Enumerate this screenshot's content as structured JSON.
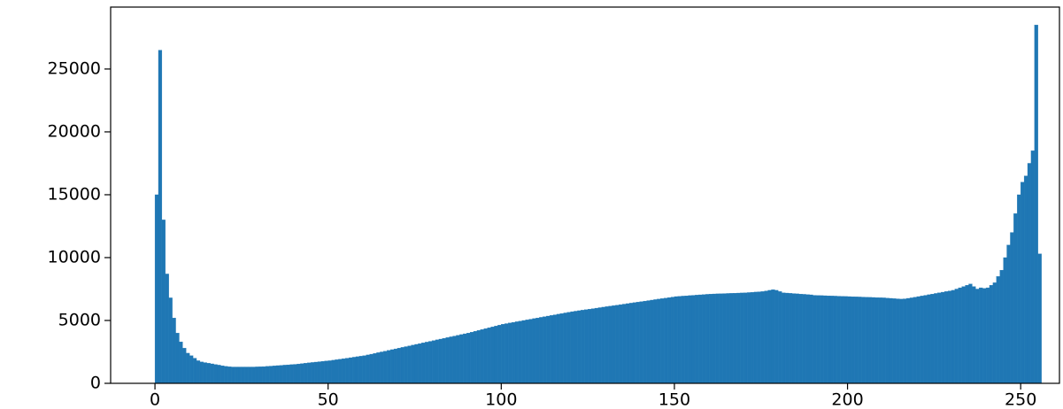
{
  "chart_data": {
    "type": "histogram",
    "color": "#1f77b4",
    "bins": [
      0,
      1,
      2,
      3,
      4,
      5,
      6,
      7,
      8,
      9,
      10,
      11,
      12,
      13,
      14,
      15,
      16,
      17,
      18,
      19,
      20,
      21,
      22,
      23,
      24,
      25,
      26,
      27,
      28,
      29,
      30,
      31,
      32,
      33,
      34,
      35,
      36,
      37,
      38,
      39,
      40,
      41,
      42,
      43,
      44,
      45,
      46,
      47,
      48,
      49,
      50,
      51,
      52,
      53,
      54,
      55,
      56,
      57,
      58,
      59,
      60,
      61,
      62,
      63,
      64,
      65,
      66,
      67,
      68,
      69,
      70,
      71,
      72,
      73,
      74,
      75,
      76,
      77,
      78,
      79,
      80,
      81,
      82,
      83,
      84,
      85,
      86,
      87,
      88,
      89,
      90,
      91,
      92,
      93,
      94,
      95,
      96,
      97,
      98,
      99,
      100,
      101,
      102,
      103,
      104,
      105,
      106,
      107,
      108,
      109,
      110,
      111,
      112,
      113,
      114,
      115,
      116,
      117,
      118,
      119,
      120,
      121,
      122,
      123,
      124,
      125,
      126,
      127,
      128,
      129,
      130,
      131,
      132,
      133,
      134,
      135,
      136,
      137,
      138,
      139,
      140,
      141,
      142,
      143,
      144,
      145,
      146,
      147,
      148,
      149,
      150,
      151,
      152,
      153,
      154,
      155,
      156,
      157,
      158,
      159,
      160,
      161,
      162,
      163,
      164,
      165,
      166,
      167,
      168,
      169,
      170,
      171,
      172,
      173,
      174,
      175,
      176,
      177,
      178,
      179,
      180,
      181,
      182,
      183,
      184,
      185,
      186,
      187,
      188,
      189,
      190,
      191,
      192,
      193,
      194,
      195,
      196,
      197,
      198,
      199,
      200,
      201,
      202,
      203,
      204,
      205,
      206,
      207,
      208,
      209,
      210,
      211,
      212,
      213,
      214,
      215,
      216,
      217,
      218,
      219,
      220,
      221,
      222,
      223,
      224,
      225,
      226,
      227,
      228,
      229,
      230,
      231,
      232,
      233,
      234,
      235,
      236,
      237,
      238,
      239,
      240,
      241,
      242,
      243,
      244,
      245,
      246,
      247,
      248,
      249,
      250,
      251,
      252,
      253,
      254,
      255,
      256
    ],
    "values": [
      15000,
      26500,
      13000,
      8700,
      6800,
      5200,
      4000,
      3300,
      2800,
      2400,
      2200,
      2000,
      1800,
      1700,
      1650,
      1600,
      1550,
      1500,
      1450,
      1400,
      1350,
      1320,
      1300,
      1300,
      1300,
      1300,
      1300,
      1300,
      1300,
      1310,
      1320,
      1330,
      1350,
      1370,
      1390,
      1410,
      1430,
      1450,
      1470,
      1490,
      1510,
      1540,
      1570,
      1600,
      1630,
      1660,
      1690,
      1720,
      1750,
      1780,
      1800,
      1840,
      1880,
      1920,
      1960,
      2000,
      2040,
      2080,
      2120,
      2160,
      2200,
      2260,
      2320,
      2380,
      2440,
      2500,
      2560,
      2620,
      2680,
      2740,
      2800,
      2860,
      2920,
      2980,
      3040,
      3100,
      3160,
      3220,
      3280,
      3340,
      3400,
      3460,
      3520,
      3580,
      3640,
      3700,
      3760,
      3820,
      3880,
      3940,
      4000,
      4070,
      4140,
      4210,
      4280,
      4350,
      4420,
      4490,
      4560,
      4630,
      4700,
      4750,
      4800,
      4850,
      4900,
      4950,
      5000,
      5050,
      5100,
      5150,
      5200,
      5250,
      5300,
      5350,
      5400,
      5450,
      5500,
      5550,
      5600,
      5650,
      5700,
      5740,
      5780,
      5820,
      5860,
      5900,
      5940,
      5980,
      6020,
      6060,
      6100,
      6140,
      6180,
      6220,
      6260,
      6300,
      6340,
      6380,
      6420,
      6460,
      6500,
      6540,
      6580,
      6620,
      6660,
      6700,
      6740,
      6780,
      6820,
      6860,
      6900,
      6920,
      6940,
      6960,
      6980,
      7000,
      7020,
      7040,
      7060,
      7080,
      7100,
      7110,
      7120,
      7130,
      7140,
      7150,
      7160,
      7170,
      7180,
      7190,
      7200,
      7220,
      7240,
      7260,
      7280,
      7300,
      7350,
      7400,
      7450,
      7400,
      7300,
      7200,
      7180,
      7160,
      7140,
      7120,
      7100,
      7080,
      7060,
      7040,
      7000,
      6990,
      6980,
      6970,
      6960,
      6950,
      6940,
      6930,
      6920,
      6910,
      6900,
      6890,
      6880,
      6870,
      6860,
      6850,
      6840,
      6830,
      6820,
      6810,
      6800,
      6780,
      6760,
      6740,
      6720,
      6700,
      6720,
      6760,
      6800,
      6850,
      6900,
      6950,
      7000,
      7050,
      7100,
      7150,
      7200,
      7250,
      7300,
      7350,
      7400,
      7500,
      7600,
      7700,
      7800,
      7900,
      7700,
      7500,
      7600,
      7550,
      7600,
      7800,
      8000,
      8500,
      9000,
      10000,
      11000,
      12000,
      13500,
      15000,
      16000,
      16500,
      17500,
      18500,
      28500,
      10300
    ],
    "xlim": [
      -12.8,
      261.2
    ],
    "xticks": [
      0,
      50,
      100,
      150,
      200,
      250
    ],
    "ylim": [
      0,
      29925
    ],
    "yticks": [
      0,
      5000,
      10000,
      15000,
      20000,
      25000
    ]
  }
}
